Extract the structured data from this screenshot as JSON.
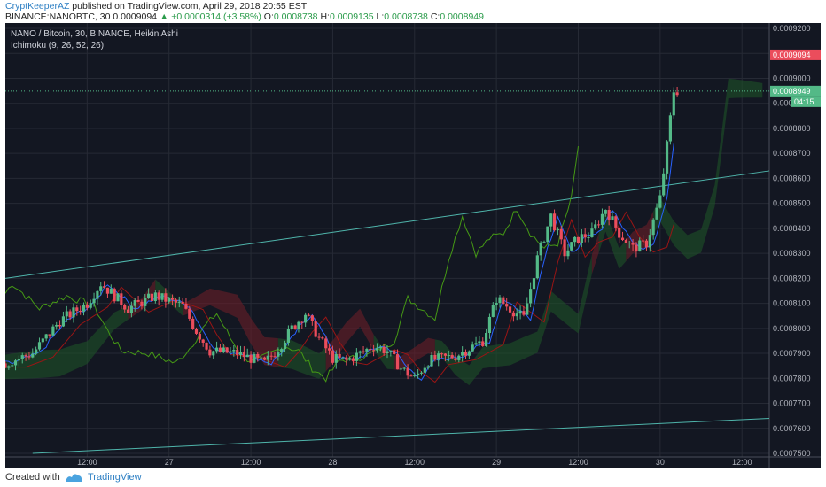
{
  "header": {
    "author": "CryptKeeperAZ",
    "published": "published on TradingView.com, April 29, 2018 20:55 EST",
    "symbol": "BINANCE:NANOBTC, 30",
    "last": "0.0009094",
    "change_arrow": "▲",
    "change": "+0.0000314 (+3.58%)",
    "o_label": "O:",
    "o": "0.0008738",
    "h_label": "H:",
    "h": "0.0009135",
    "l_label": "L:",
    "l": "0.0008738",
    "c_label": "C:",
    "c": "0.0008949"
  },
  "legend": {
    "line1": "NANO / Bitcoin, 30, BINANCE, Heikin Ashi",
    "line2": "Ichimoku (9, 26, 52, 26)"
  },
  "footer": {
    "created_label": "Created with",
    "brand": "TradingView"
  },
  "colors": {
    "background": "#131722",
    "up": "#53b987",
    "down": "#eb4d5c",
    "tenkan": "#2962ff",
    "kijun": "#991515",
    "chikou": "#459915",
    "cloud_green": "#1e5128",
    "cloud_red": "#6b1e28",
    "trendline": "#4fb5ab",
    "current_label": "#53b987",
    "high_label": "#eb4d5c"
  },
  "chart_data": {
    "type": "candlestick",
    "title": "NANO / Bitcoin, 30, BINANCE, Heikin Ashi",
    "indicator": "Ichimoku (9, 26, 52, 26)",
    "ylim": [
      0.00075,
      0.00092
    ],
    "y_ticks": [
      "0.0009200",
      "0.0009100",
      "0.0009000",
      "0.0008900",
      "0.0008800",
      "0.0008700",
      "0.0008600",
      "0.0008500",
      "0.0008400",
      "0.0008300",
      "0.0008200",
      "0.0008100",
      "0.0008000",
      "0.0007900",
      "0.0007800",
      "0.0007700",
      "0.0007600",
      "0.0007500"
    ],
    "x_ticks": [
      "12:00",
      "27",
      "12:00",
      "28",
      "12:00",
      "29",
      "12:00",
      "30",
      "12:00"
    ],
    "x_tick_positions_hours": [
      12,
      24,
      36,
      48,
      60,
      72,
      84,
      96,
      108
    ],
    "x_range_hours": [
      0,
      112
    ],
    "price_labels": [
      {
        "value": 0.0009094,
        "text": "0.0009094",
        "role": "high"
      },
      {
        "value": 0.0008949,
        "text": "0.0008949",
        "role": "current"
      }
    ],
    "countdown": "04:15",
    "candle_keypoints": [
      [
        0,
        0.000786
      ],
      [
        4,
        0.00079
      ],
      [
        8,
        0.000803
      ],
      [
        12,
        0.00081
      ],
      [
        14,
        0.000818
      ],
      [
        18,
        0.000808
      ],
      [
        22,
        0.000813
      ],
      [
        26,
        0.000809
      ],
      [
        28,
        0.000799
      ],
      [
        30,
        0.000791
      ],
      [
        34,
        0.00079
      ],
      [
        38,
        0.000786
      ],
      [
        40,
        0.000792
      ],
      [
        42,
        0.0008
      ],
      [
        44,
        0.000806
      ],
      [
        46,
        0.000796
      ],
      [
        48,
        0.000788
      ],
      [
        50,
        0.000787
      ],
      [
        52,
        0.00079
      ],
      [
        54,
        0.000793
      ],
      [
        56,
        0.000791
      ],
      [
        58,
        0.000784
      ],
      [
        60,
        0.00078
      ],
      [
        62,
        0.000787
      ],
      [
        66,
        0.000789
      ],
      [
        68,
        0.000792
      ],
      [
        70,
        0.000795
      ],
      [
        72,
        0.000812
      ],
      [
        74,
        0.000808
      ],
      [
        76,
        0.000804
      ],
      [
        78,
        0.000828
      ],
      [
        80,
        0.000845
      ],
      [
        82,
        0.00083
      ],
      [
        84,
        0.000836
      ],
      [
        86,
        0.000838
      ],
      [
        88,
        0.000848
      ],
      [
        90,
        0.000838
      ],
      [
        92,
        0.000832
      ],
      [
        94,
        0.000834
      ],
      [
        96,
        0.000852
      ],
      [
        97,
        0.000873
      ],
      [
        98,
        0.000895
      ]
    ],
    "trendlines": [
      {
        "from": [
          0,
          0.00082
        ],
        "to": [
          112,
          0.000863
        ]
      },
      {
        "from": [
          4,
          0.00075
        ],
        "to": [
          112,
          0.000764
        ]
      }
    ]
  }
}
